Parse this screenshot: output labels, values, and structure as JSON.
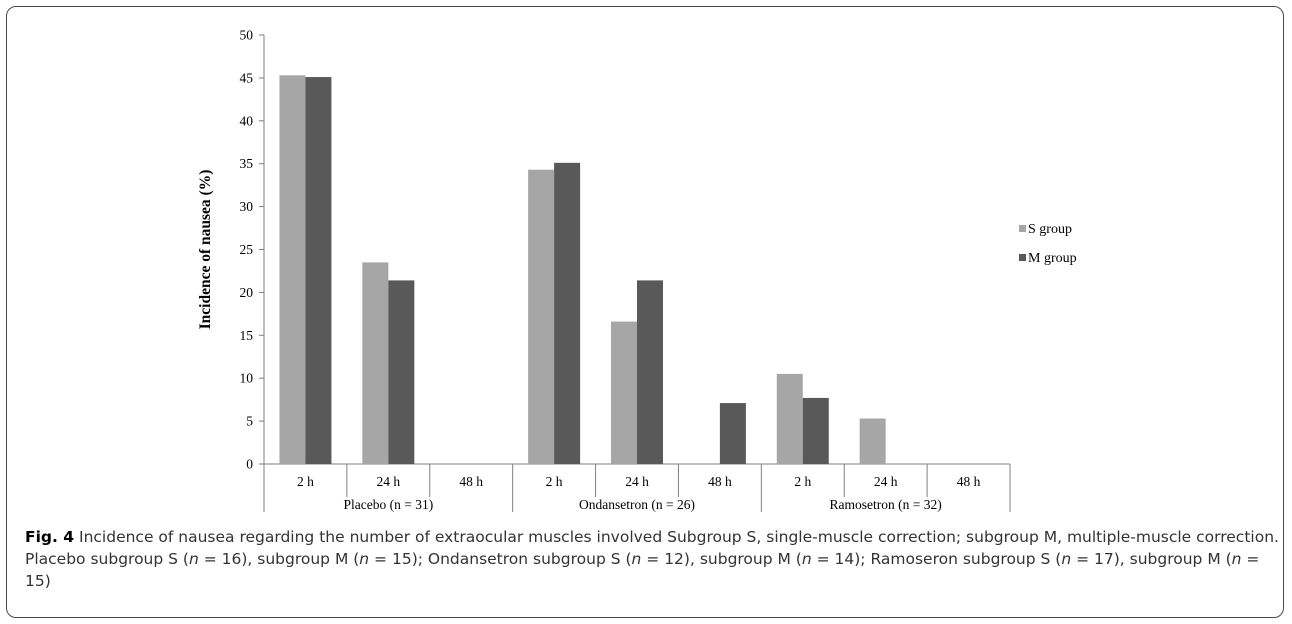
{
  "chart_data": {
    "type": "bar",
    "ylabel": "Incidence of nausea (%)",
    "ylim": [
      0,
      50
    ],
    "yticks": [
      "0",
      "5",
      "10",
      "15",
      "20",
      "25",
      "30",
      "35",
      "40",
      "45",
      "50"
    ],
    "ytick_values": [
      0,
      5,
      10,
      15,
      20,
      25,
      30,
      35,
      40,
      45,
      50
    ],
    "groups": [
      {
        "label": "Placebo (n = 31)",
        "categories": [
          "2 h",
          "24 h",
          "48 h"
        ]
      },
      {
        "label": "Ondansetron (n = 26)",
        "categories": [
          "2 h",
          "24 h",
          "48 h"
        ]
      },
      {
        "label": "Ramosetron (n = 32)",
        "categories": [
          "2 h",
          "24 h",
          "48 h"
        ]
      }
    ],
    "series": [
      {
        "name": "S group",
        "color": "#a6a6a6",
        "values": [
          45.3,
          23.5,
          0,
          34.3,
          16.6,
          0,
          10.5,
          5.3,
          0
        ]
      },
      {
        "name": "M group",
        "color": "#595959",
        "values": [
          45.1,
          21.4,
          0,
          35.1,
          21.4,
          7.1,
          7.7,
          0,
          0
        ]
      }
    ],
    "legend_position": "right",
    "grid": false
  },
  "caption": {
    "fig_label": "Fig. 4",
    "parts": [
      {
        "t": " Incidence of nausea regarding the number of extraocular muscles involved Subgroup S, single-muscle correction; subgroup M, multiple-muscle correction. Placebo subgroup S ("
      },
      {
        "t": "n",
        "i": true
      },
      {
        "t": " = 16), subgroup M ("
      },
      {
        "t": "n",
        "i": true
      },
      {
        "t": " = 15); Ondansetron subgroup S ("
      },
      {
        "t": "n",
        "i": true
      },
      {
        "t": " = 12), subgroup M ("
      },
      {
        "t": "n",
        "i": true
      },
      {
        "t": " = 14); Ramoseron subgroup S ("
      },
      {
        "t": "n",
        "i": true
      },
      {
        "t": " = 17), subgroup M ("
      },
      {
        "t": "n",
        "i": true
      },
      {
        "t": " = 15)"
      }
    ]
  }
}
